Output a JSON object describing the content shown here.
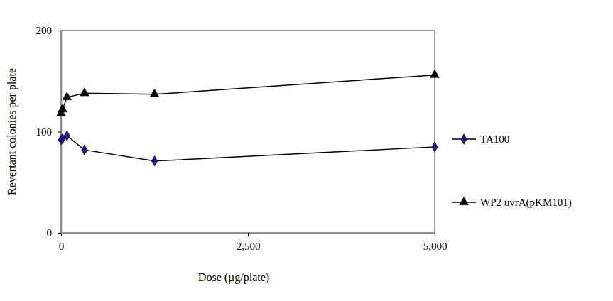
{
  "chart_data": {
    "type": "line",
    "x_label": "Dose (µg/plate)",
    "y_label": "Revertant colonies per plate",
    "x": [
      0,
      19.5,
      78.1,
      312.5,
      1250,
      5000
    ],
    "series": [
      {
        "name": "TA100",
        "color": "#1f1a8a",
        "marker": "diamond",
        "values": [
          92,
          93,
          96,
          82,
          71,
          85
        ]
      },
      {
        "name": "WP2 uvrA(pKM101)",
        "color": "#000000",
        "marker": "triangle",
        "values": [
          118,
          122,
          134,
          138,
          137,
          156
        ]
      }
    ],
    "xlim": [
      0,
      5000
    ],
    "xticks": [
      0,
      {
        "value": 2500,
        "label": "2,500"
      },
      {
        "value": 5000,
        "label": "5,000"
      }
    ],
    "ylim": [
      0,
      200
    ],
    "yticks": [
      0,
      100,
      200
    ],
    "grid": false,
    "legend": "right"
  }
}
